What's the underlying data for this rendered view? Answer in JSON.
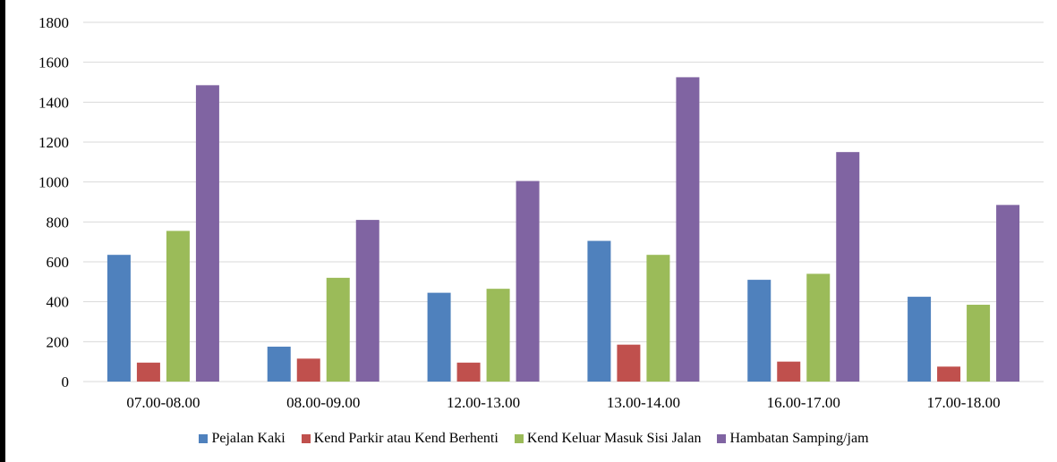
{
  "chart_data": {
    "type": "bar",
    "title": "",
    "xlabel": "",
    "ylabel": "",
    "categories": [
      "07.00-08.00",
      "08.00-09.00",
      "12.00-13.00",
      "13.00-14.00",
      "16.00-17.00",
      "17.00-18.00"
    ],
    "series": [
      {
        "name": "Pejalan Kaki",
        "color": "#4F81BD",
        "values": [
          635,
          175,
          445,
          705,
          510,
          425
        ]
      },
      {
        "name": "Kend Parkir atau Kend Berhenti",
        "color": "#C0504D",
        "values": [
          95,
          115,
          95,
          185,
          100,
          75
        ]
      },
      {
        "name": "Kend Keluar Masuk Sisi Jalan",
        "color": "#9BBB59",
        "values": [
          755,
          520,
          465,
          635,
          540,
          385
        ]
      },
      {
        "name": "Hambatan Samping/jam",
        "color": "#8064A2",
        "values": [
          1485,
          810,
          1005,
          1525,
          1150,
          885
        ]
      }
    ],
    "ylim": [
      0,
      1800
    ],
    "yticks": [
      "0",
      "200",
      "400",
      "600",
      "800",
      "1000",
      "1200",
      "1400",
      "1600",
      "1800"
    ],
    "grid": true,
    "legend_position": "bottom"
  }
}
